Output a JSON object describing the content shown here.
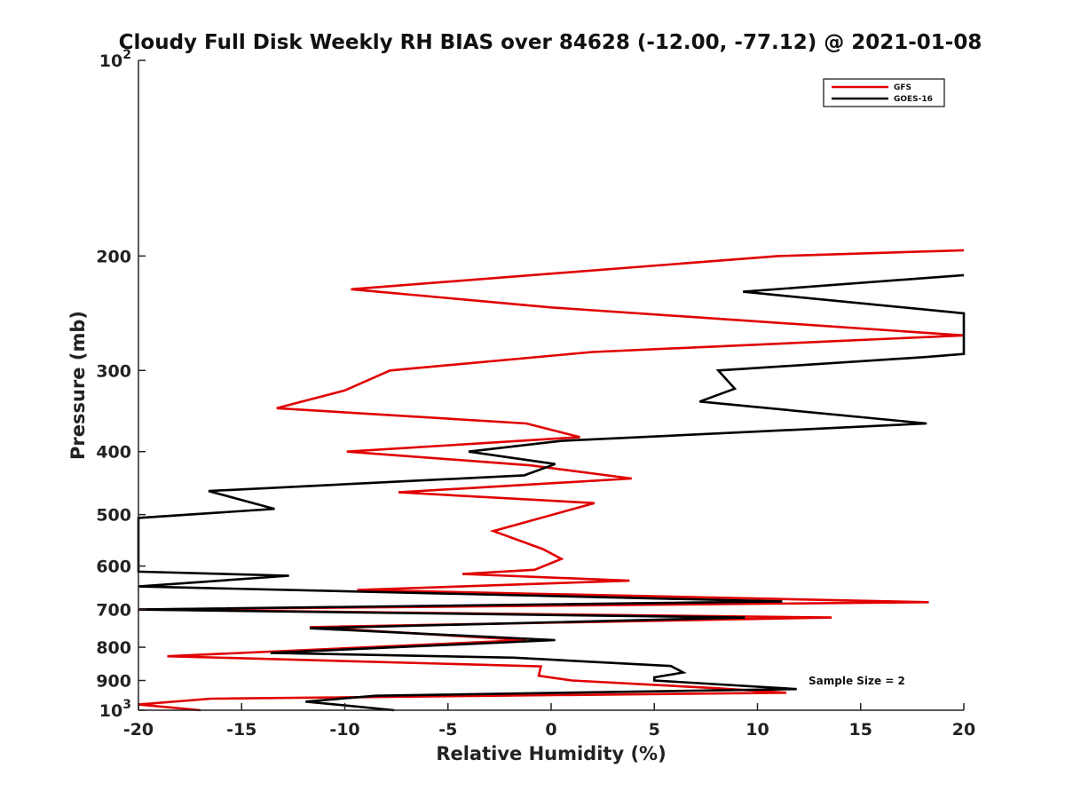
{
  "chart_data": {
    "type": "line",
    "title": "Cloudy Full Disk Weekly RH BIAS over 84628 (-12.00, -77.12) @ 2021-01-08",
    "xlabel": "Relative Humidity (%)",
    "ylabel": "Pressure (mb)",
    "xlim": [
      -20,
      20
    ],
    "ylim": [
      1000,
      100
    ],
    "yscale": "log",
    "y_reversed": true,
    "x_ticks": [
      -20,
      -15,
      -10,
      -5,
      0,
      5,
      10,
      15,
      20
    ],
    "x_tick_labels": [
      "-20",
      "-15",
      "-10",
      "-5",
      "0",
      "5",
      "10",
      "15",
      "20"
    ],
    "y_ticks": [
      100,
      200,
      300,
      400,
      500,
      600,
      700,
      800,
      900,
      1000
    ],
    "y_tick_labels": [
      {
        "base": "10",
        "exp": "2"
      },
      {
        "base": "200",
        "exp": ""
      },
      {
        "base": "300",
        "exp": ""
      },
      {
        "base": "400",
        "exp": ""
      },
      {
        "base": "500",
        "exp": ""
      },
      {
        "base": "600",
        "exp": ""
      },
      {
        "base": "700",
        "exp": ""
      },
      {
        "base": "800",
        "exp": ""
      },
      {
        "base": "900",
        "exp": ""
      },
      {
        "base": "10",
        "exp": "3"
      }
    ],
    "grid": false,
    "legend_position": "top-right",
    "annotation": "Sample Size = 2",
    "series": [
      {
        "name": "GFS",
        "color": "#e00000",
        "points": [
          [
            20,
            196
          ],
          [
            11,
            200
          ],
          [
            -9.7,
            225
          ],
          [
            0,
            240
          ],
          [
            20,
            265
          ],
          [
            2,
            281
          ],
          [
            -7.8,
            300
          ],
          [
            -10,
            322
          ],
          [
            -13.3,
            343
          ],
          [
            -1.2,
            362
          ],
          [
            1.4,
            380
          ],
          [
            -9.9,
            400
          ],
          [
            -1,
            420
          ],
          [
            3.9,
            440
          ],
          [
            -7.4,
            462
          ],
          [
            2.1,
            480
          ],
          [
            -2.8,
            530
          ],
          [
            -0.4,
            565
          ],
          [
            0.5,
            585
          ],
          [
            -0.8,
            608
          ],
          [
            -4.3,
            617
          ],
          [
            3.8,
            632
          ],
          [
            -9.4,
            653
          ],
          [
            18.3,
            682
          ],
          [
            -20,
            700
          ],
          [
            13.6,
            720
          ],
          [
            -11.7,
            745
          ],
          [
            -1.2,
            780
          ],
          [
            -18.6,
            826
          ],
          [
            -0.5,
            856
          ],
          [
            -0.6,
            885
          ],
          [
            1,
            900
          ],
          [
            8,
            925
          ],
          [
            11.4,
            940
          ],
          [
            -16.5,
            960
          ],
          [
            -20,
            980
          ],
          [
            -17,
            1000
          ]
        ]
      },
      {
        "name": "GOES-16",
        "color": "#000000",
        "points": [
          [
            20,
            214
          ],
          [
            9.3,
            227
          ],
          [
            20,
            245
          ],
          [
            20,
            283
          ],
          [
            18.2,
            286
          ],
          [
            8.1,
            300
          ],
          [
            8.9,
            320
          ],
          [
            7.2,
            335
          ],
          [
            18.2,
            362
          ],
          [
            0.5,
            385
          ],
          [
            -4,
            400
          ],
          [
            0.2,
            418
          ],
          [
            -1.3,
            435
          ],
          [
            -16.6,
            460
          ],
          [
            -13.4,
            490
          ],
          [
            -20,
            506
          ],
          [
            -20,
            612
          ],
          [
            -12.7,
            621
          ],
          [
            -20,
            645
          ],
          [
            11.2,
            680
          ],
          [
            -20,
            700
          ],
          [
            9.4,
            720
          ],
          [
            -11.7,
            748
          ],
          [
            0.2,
            780
          ],
          [
            -13.6,
            816
          ],
          [
            -1.8,
            830
          ],
          [
            5.8,
            855
          ],
          [
            6.4,
            875
          ],
          [
            5,
            890
          ],
          [
            5,
            900
          ],
          [
            11.9,
            928
          ],
          [
            -8.5,
            950
          ],
          [
            -11.9,
            970
          ],
          [
            -7.6,
            1000
          ]
        ]
      }
    ]
  }
}
